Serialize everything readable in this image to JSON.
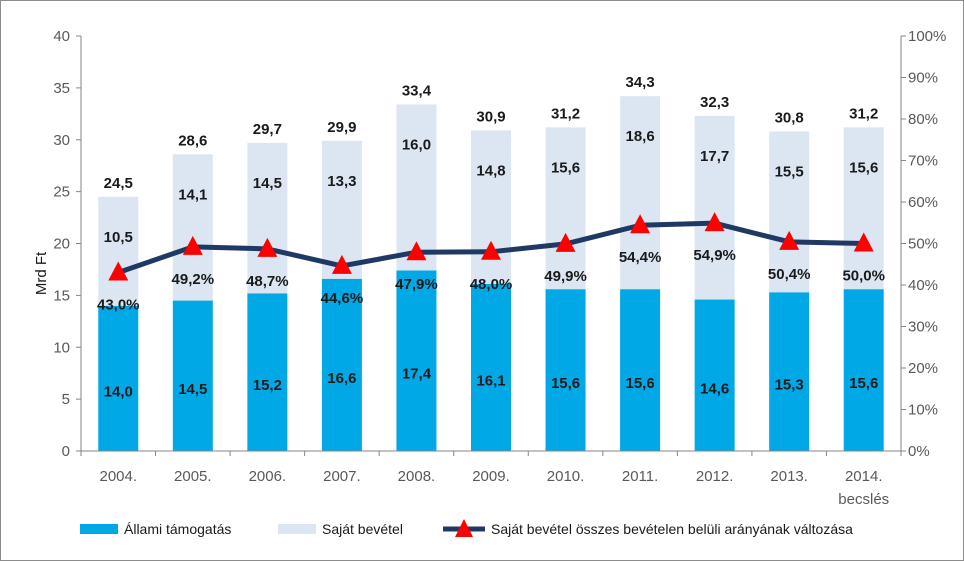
{
  "chart_data": {
    "type": "bar",
    "stacked": true,
    "categories": [
      "2004.",
      "2005.",
      "2006.",
      "2007.",
      "2008.",
      "2009.",
      "2010.",
      "2011.",
      "2012.",
      "2013.",
      "2014."
    ],
    "category_sublabels": [
      "",
      "",
      "",
      "",
      "",
      "",
      "",
      "",
      "",
      "",
      "becslés"
    ],
    "ylabel": "Mrd Ft",
    "ylim": [
      0,
      40
    ],
    "y_ticks": [
      "0",
      "5",
      "10",
      "15",
      "20",
      "25",
      "30",
      "35",
      "40"
    ],
    "y2lim": [
      0,
      100
    ],
    "y2_ticks": [
      "0%",
      "10%",
      "20%",
      "30%",
      "40%",
      "50%",
      "60%",
      "70%",
      "80%",
      "90%",
      "100%"
    ],
    "grid": false,
    "legend_position": "bottom",
    "series": [
      {
        "name": "Állami támogatás",
        "color": "#00a9e6",
        "values": [
          14.0,
          14.5,
          15.2,
          16.6,
          17.4,
          16.1,
          15.6,
          15.6,
          14.6,
          15.3,
          15.6
        ],
        "labels": [
          "14,0",
          "14,5",
          "15,2",
          "16,6",
          "17,4",
          "16,1",
          "15,6",
          "15,6",
          "14,6",
          "15,3",
          "15,6"
        ]
      },
      {
        "name": "Saját bevétel",
        "color": "#dce6f2",
        "values": [
          10.5,
          14.1,
          14.5,
          13.3,
          16.0,
          14.8,
          15.6,
          18.6,
          17.7,
          15.5,
          15.6
        ],
        "labels": [
          "10,5",
          "14,1",
          "14,5",
          "13,3",
          "16,0",
          "14,8",
          "15,6",
          "18,6",
          "17,7",
          "15,5",
          "15,6"
        ]
      }
    ],
    "totals": [
      24.5,
      28.6,
      29.7,
      29.9,
      33.4,
      30.9,
      31.2,
      34.3,
      32.3,
      30.8,
      31.2
    ],
    "total_labels": [
      "24,5",
      "28,6",
      "29,7",
      "29,9",
      "33,4",
      "30,9",
      "31,2",
      "34,3",
      "32,3",
      "30,8",
      "31,2"
    ],
    "line_series": {
      "name": "Saját bevétel összes bevételen belüli arányának változása",
      "axis": "right",
      "line_color": "#1f3864",
      "marker_color": "#ff0000",
      "values": [
        43.0,
        49.2,
        48.7,
        44.6,
        47.9,
        48.0,
        49.9,
        54.4,
        54.9,
        50.4,
        50.0
      ],
      "labels": [
        "43,0%",
        "49,2%",
        "48,7%",
        "44,6%",
        "47,9%",
        "48,0%",
        "49,9%",
        "54,4%",
        "54,9%",
        "50,4%",
        "50,0%"
      ]
    }
  }
}
